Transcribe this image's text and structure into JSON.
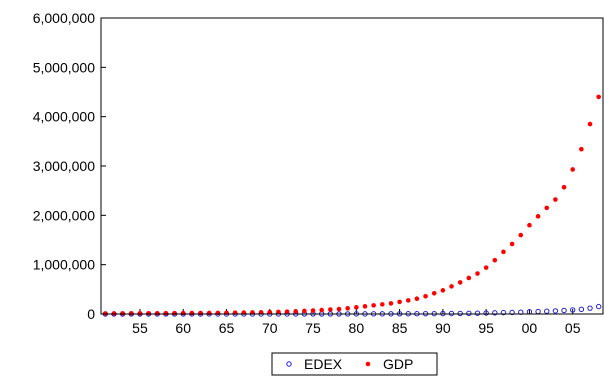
{
  "chart_data": {
    "type": "scatter",
    "title": "",
    "xlabel": "",
    "ylabel": "",
    "x": [
      1951,
      1952,
      1953,
      1954,
      1955,
      1956,
      1957,
      1958,
      1959,
      1960,
      1961,
      1962,
      1963,
      1964,
      1965,
      1966,
      1967,
      1968,
      1969,
      1970,
      1971,
      1972,
      1973,
      1974,
      1975,
      1976,
      1977,
      1978,
      1979,
      1980,
      1981,
      1982,
      1983,
      1984,
      1985,
      1986,
      1987,
      1988,
      1989,
      1990,
      1991,
      1992,
      1993,
      1994,
      1995,
      1996,
      1997,
      1998,
      1999,
      2000,
      2001,
      2002,
      2003,
      2004,
      2005,
      2006,
      2007,
      2008
    ],
    "xlim": [
      1950.5,
      2008.5
    ],
    "x_ticks": [
      1955,
      1960,
      1965,
      1970,
      1975,
      1980,
      1985,
      1990,
      1995,
      2000,
      2005
    ],
    "x_tick_labels": [
      "55",
      "60",
      "65",
      "70",
      "75",
      "80",
      "85",
      "90",
      "95",
      "00",
      "05"
    ],
    "ylim": [
      0,
      6000000
    ],
    "y_ticks": [
      0,
      1000000,
      2000000,
      3000000,
      4000000,
      5000000,
      6000000
    ],
    "y_tick_labels": [
      "0",
      "1,000,000",
      "2,000,000",
      "3,000,000",
      "4,000,000",
      "5,000,000",
      "6,000,000"
    ],
    "grid": false,
    "legend_position": "bottom-center",
    "series": [
      {
        "name": "EDEX",
        "color": "#1f1fd6",
        "marker": "open-circle",
        "values": [
          200,
          220,
          240,
          260,
          280,
          300,
          330,
          360,
          390,
          420,
          460,
          500,
          550,
          600,
          650,
          700,
          760,
          820,
          880,
          950,
          1020,
          1100,
          1200,
          1300,
          1400,
          1500,
          1700,
          1900,
          2100,
          2400,
          2700,
          3000,
          3400,
          3800,
          4300,
          4900,
          5600,
          6400,
          7300,
          8500,
          10000,
          12000,
          14500,
          17000,
          20000,
          24000,
          28000,
          32000,
          37000,
          44000,
          50000,
          56000,
          63000,
          72000,
          83000,
          95000,
          118000,
          150000
        ]
      },
      {
        "name": "GDP",
        "color": "#ff0000",
        "marker": "filled-circle",
        "values": [
          10000,
          11000,
          12000,
          13000,
          13500,
          14000,
          15000,
          16000,
          17000,
          18000,
          19000,
          20000,
          21500,
          23000,
          25000,
          27000,
          29000,
          31000,
          34000,
          38000,
          42000,
          47000,
          54000,
          62000,
          70000,
          79000,
          90000,
          100000,
          115000,
          135000,
          155000,
          175000,
          195000,
          215000,
          245000,
          275000,
          310000,
          360000,
          420000,
          480000,
          560000,
          640000,
          730000,
          820000,
          940000,
          1090000,
          1260000,
          1420000,
          1600000,
          1800000,
          1980000,
          2150000,
          2320000,
          2570000,
          2930000,
          3340000,
          3850000,
          4400000
        ]
      }
    ]
  }
}
